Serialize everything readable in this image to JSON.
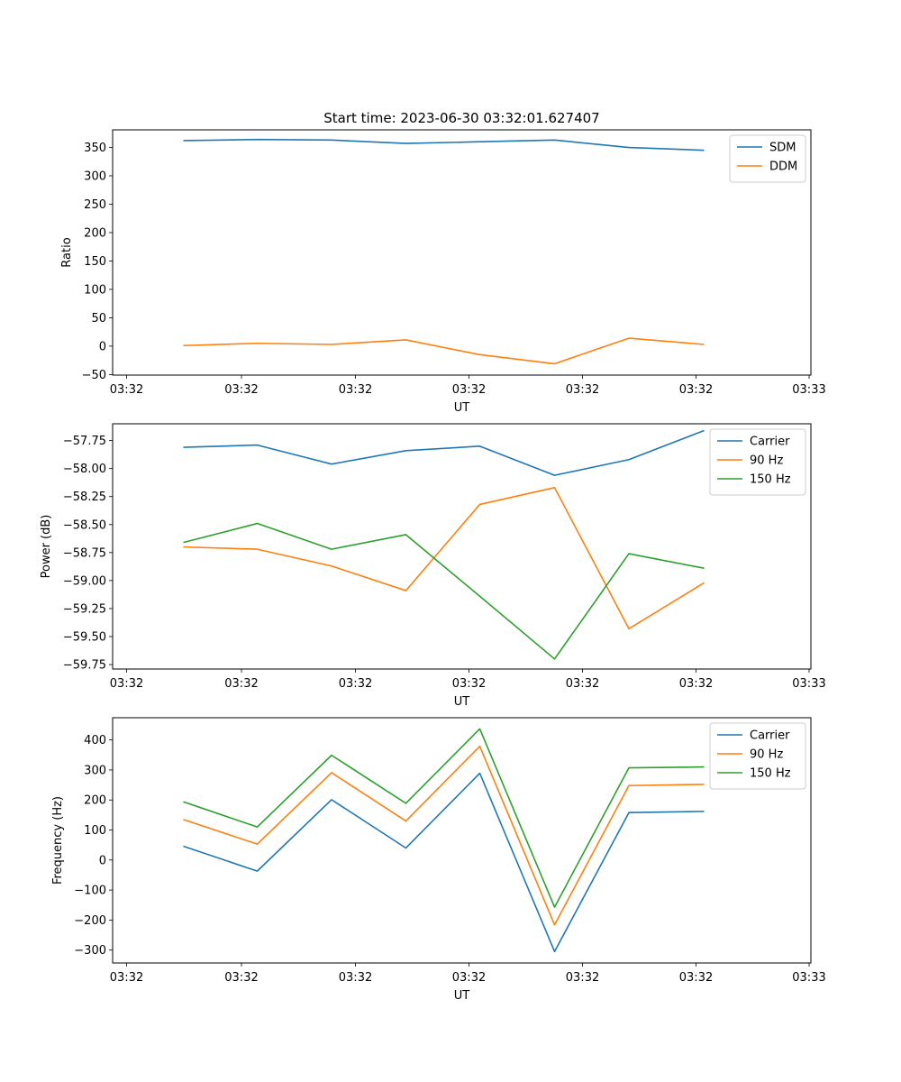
{
  "title": "Start time: 2023-06-30 03:32:01.627407",
  "colors": {
    "blue": "#1f77b4",
    "orange": "#ff7f0e",
    "green": "#2ca02c"
  },
  "chart_data": [
    {
      "type": "line",
      "title": "Start time: 2023-06-30 03:32:01.627407",
      "xlabel": "UT",
      "ylabel": "Ratio",
      "x_tick_labels": [
        "03:32",
        "03:32",
        "03:32",
        "03:32",
        "03:32",
        "03:32",
        "03:33"
      ],
      "y_ticks": [
        -50,
        0,
        50,
        100,
        150,
        200,
        250,
        300,
        350
      ],
      "y_tick_labels": [
        "−50",
        "0",
        "50",
        "100",
        "150",
        "200",
        "250",
        "300",
        "350"
      ],
      "ylim": [
        -51,
        381
      ],
      "grid": false,
      "legend": "top-right",
      "series": [
        {
          "name": "SDM",
          "color": "#1f77b4",
          "values": [
            362,
            364,
            363,
            357,
            360,
            363,
            350,
            345
          ]
        },
        {
          "name": "DDM",
          "color": "#ff7f0e",
          "values": [
            1,
            5,
            3,
            11,
            -15,
            -31,
            14,
            3
          ]
        }
      ]
    },
    {
      "type": "line",
      "xlabel": "UT",
      "ylabel": "Power (dB)",
      "x_tick_labels": [
        "03:32",
        "03:32",
        "03:32",
        "03:32",
        "03:32",
        "03:32",
        "03:33"
      ],
      "y_ticks": [
        -59.75,
        -59.5,
        -59.25,
        -59.0,
        -58.75,
        -58.5,
        -58.25,
        -58.0,
        -57.75
      ],
      "y_tick_labels": [
        "−59.75",
        "−59.50",
        "−59.25",
        "−59.00",
        "−58.75",
        "−58.50",
        "−58.25",
        "−58.00",
        "−57.75"
      ],
      "ylim": [
        -59.79,
        -57.6
      ],
      "grid": false,
      "legend": "top-right",
      "series": [
        {
          "name": "Carrier",
          "color": "#1f77b4",
          "values": [
            -57.81,
            -57.79,
            -57.96,
            -57.84,
            -57.8,
            -58.06,
            -57.92,
            -57.66
          ]
        },
        {
          "name": "90 Hz",
          "color": "#ff7f0e",
          "values": [
            -58.7,
            -58.72,
            -58.87,
            -59.09,
            -58.32,
            -58.17,
            -59.43,
            -59.02
          ]
        },
        {
          "name": "150 Hz",
          "color": "#2ca02c",
          "values": [
            -58.66,
            -58.49,
            -58.72,
            -58.59,
            -59.14,
            -59.7,
            -58.76,
            -58.89
          ]
        }
      ]
    },
    {
      "type": "line",
      "xlabel": "UT",
      "ylabel": "Frequency (Hz)",
      "x_tick_labels": [
        "03:32",
        "03:32",
        "03:32",
        "03:32",
        "03:32",
        "03:32",
        "03:33"
      ],
      "y_ticks": [
        -300,
        -200,
        -100,
        0,
        100,
        200,
        300,
        400
      ],
      "y_tick_labels": [
        "−300",
        "−200",
        "−100",
        "0",
        "100",
        "200",
        "300",
        "400"
      ],
      "ylim": [
        -343,
        474
      ],
      "grid": false,
      "legend": "top-right",
      "series": [
        {
          "name": "Carrier",
          "color": "#1f77b4",
          "values": [
            46,
            -37,
            201,
            40,
            289,
            -305,
            158,
            162
          ]
        },
        {
          "name": "90 Hz",
          "color": "#ff7f0e",
          "values": [
            135,
            53,
            291,
            130,
            379,
            -216,
            248,
            252
          ]
        },
        {
          "name": "150 Hz",
          "color": "#2ca02c",
          "values": [
            194,
            110,
            349,
            189,
            437,
            -157,
            307,
            310
          ]
        }
      ]
    }
  ]
}
